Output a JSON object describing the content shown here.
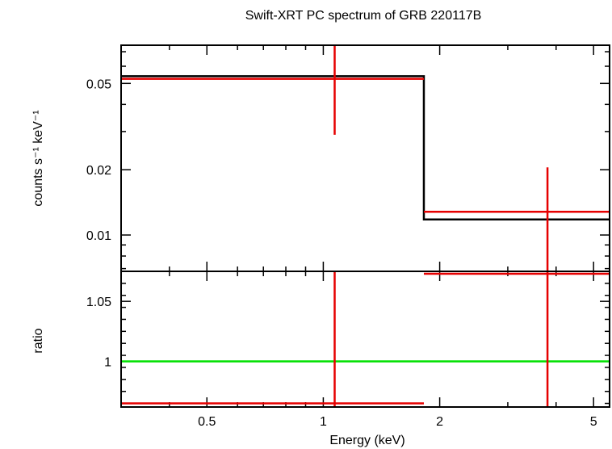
{
  "chart_data": [
    {
      "type": "line",
      "panel": "spectrum",
      "title": "Swift-XRT PC spectrum of GRB 220117B",
      "xlabel": "",
      "ylabel": "counts s⁻¹ keV⁻¹",
      "x_scale": "log",
      "y_scale": "log",
      "xlim": [
        0.3,
        5.5
      ],
      "ylim": [
        0.0068,
        0.075
      ],
      "yticks": [
        {
          "value": 0.01,
          "label": "0.01"
        },
        {
          "value": 0.02,
          "label": "0.02"
        },
        {
          "value": 0.05,
          "label": "0.05"
        }
      ],
      "model_color": "#000000",
      "data_color": "#e60000",
      "model": [
        {
          "x0": 0.3,
          "x1": 1.82,
          "y": 0.054
        },
        {
          "x0": 1.82,
          "x1": 5.5,
          "y": 0.0118
        }
      ],
      "data": [
        {
          "x": 1.07,
          "xerr": [
            0.3,
            1.82
          ],
          "y": 0.0525,
          "yerr": [
            0.029,
            0.075
          ]
        },
        {
          "x": 3.8,
          "xerr": [
            1.82,
            5.5
          ],
          "y": 0.0128,
          "yerr": [
            0.0068,
            0.0205
          ]
        }
      ]
    },
    {
      "type": "line",
      "panel": "ratio",
      "xlabel": "Energy (keV)",
      "ylabel": "ratio",
      "x_scale": "log",
      "y_scale": "linear",
      "xlim": [
        0.3,
        5.5
      ],
      "ylim": [
        0.962,
        1.075
      ],
      "xticks": [
        {
          "value": 0.5,
          "label": "0.5"
        },
        {
          "value": 1,
          "label": "1"
        },
        {
          "value": 2,
          "label": "2"
        },
        {
          "value": 5,
          "label": "5"
        }
      ],
      "yticks": [
        {
          "value": 1,
          "label": "1"
        },
        {
          "value": 1.05,
          "label": "1.05"
        }
      ],
      "reference_line": {
        "y": 1,
        "color": "#00e000"
      },
      "data_color": "#e60000",
      "data": [
        {
          "x": 1.07,
          "xerr": [
            0.3,
            1.82
          ],
          "y": 0.965,
          "yerr": [
            0.962,
            1.075
          ]
        },
        {
          "x": 3.8,
          "xerr": [
            1.82,
            5.5
          ],
          "y": 1.073,
          "yerr": [
            0.962,
            1.075
          ]
        }
      ]
    }
  ]
}
